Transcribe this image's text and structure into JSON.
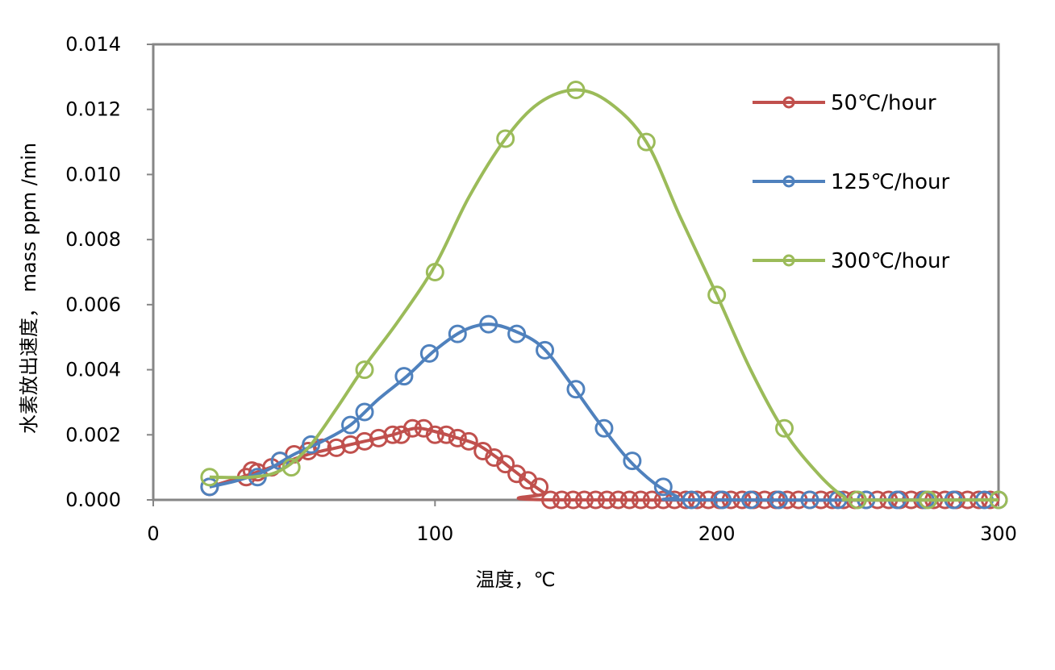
{
  "chart_data": {
    "type": "scatter",
    "xlabel": "温度，℃",
    "ylabel": "水素放出速度， mass ppm /min",
    "xlim": [
      0,
      300
    ],
    "ylim": [
      0,
      0.014
    ],
    "x_ticks": [
      0,
      100,
      200,
      300
    ],
    "x_tick_labels": [
      "0",
      "100",
      "200",
      "300"
    ],
    "y_ticks": [
      0,
      0.002,
      0.004,
      0.006,
      0.008,
      0.01,
      0.012,
      0.014
    ],
    "y_tick_labels": [
      "0.000",
      "0.002",
      "0.004",
      "0.006",
      "0.008",
      "0.010",
      "0.012",
      "0.014"
    ],
    "grid": false,
    "legend_position": "top-right",
    "series": [
      {
        "name": "50℃/hour",
        "color": "#c0504d",
        "marker": "open-circle",
        "points": [
          [
            20,
            0.0004
          ],
          [
            33,
            0.0007
          ],
          [
            35,
            0.0009
          ],
          [
            37,
            0.00085
          ],
          [
            42,
            0.001
          ],
          [
            45,
            0.0012
          ],
          [
            50,
            0.0014
          ],
          [
            55,
            0.0015
          ],
          [
            60,
            0.0016
          ],
          [
            65,
            0.0016
          ],
          [
            70,
            0.0017
          ],
          [
            75,
            0.0018
          ],
          [
            80,
            0.0019
          ],
          [
            85,
            0.002
          ],
          [
            88,
            0.002
          ],
          [
            92,
            0.0022
          ],
          [
            96,
            0.0022
          ],
          [
            100,
            0.002
          ],
          [
            104,
            0.002
          ],
          [
            108,
            0.0019
          ],
          [
            112,
            0.0018
          ],
          [
            117,
            0.0015
          ],
          [
            121,
            0.0013
          ],
          [
            125,
            0.0011
          ],
          [
            129,
            0.0008
          ],
          [
            133,
            0.0006
          ],
          [
            137,
            0.0004
          ],
          [
            141,
            0.0
          ],
          [
            145,
            0.0
          ],
          [
            149,
            0.0
          ],
          [
            153,
            0.0
          ],
          [
            157,
            0.0
          ],
          [
            161,
            0.0
          ],
          [
            165,
            0.0
          ],
          [
            169,
            0.0
          ],
          [
            173,
            0.0
          ],
          [
            177,
            0.0
          ],
          [
            181,
            0.0
          ],
          [
            185,
            0.0
          ],
          [
            189,
            0.0
          ],
          [
            193,
            0.0
          ],
          [
            197,
            0.0
          ],
          [
            201,
            0.0
          ],
          [
            205,
            0.0
          ],
          [
            209,
            0.0
          ],
          [
            213,
            0.0
          ],
          [
            217,
            0.0
          ],
          [
            221,
            0.0
          ],
          [
            225,
            0.0
          ],
          [
            229,
            0.0
          ],
          [
            233,
            0.0
          ],
          [
            237,
            0.0
          ],
          [
            241,
            0.0
          ],
          [
            245,
            0.0
          ],
          [
            249,
            0.0
          ],
          [
            253,
            0.0
          ],
          [
            257,
            0.0
          ],
          [
            261,
            0.0
          ],
          [
            265,
            0.0
          ],
          [
            269,
            0.0
          ],
          [
            273,
            0.0
          ],
          [
            277,
            0.0
          ],
          [
            281,
            0.0
          ],
          [
            285,
            0.0
          ],
          [
            289,
            0.0
          ],
          [
            293,
            0.0
          ],
          [
            297,
            0.0
          ]
        ],
        "curve": [
          [
            20,
            0.0004
          ],
          [
            35,
            0.0008
          ],
          [
            45,
            0.0011
          ],
          [
            55,
            0.0014
          ],
          [
            65,
            0.0016
          ],
          [
            75,
            0.0018
          ],
          [
            85,
            0.002
          ],
          [
            93,
            0.0022
          ],
          [
            100,
            0.0021
          ],
          [
            108,
            0.0019
          ],
          [
            115,
            0.0017
          ],
          [
            122,
            0.0013
          ],
          [
            128,
            0.0009
          ],
          [
            134,
            0.0005
          ],
          [
            139,
            0.0002
          ],
          [
            142,
            0.0
          ],
          [
            300,
            0.0
          ]
        ]
      },
      {
        "name": "125℃/hour",
        "color": "#4f81bd",
        "marker": "open-circle",
        "points": [
          [
            20,
            0.0004
          ],
          [
            37,
            0.0007
          ],
          [
            45,
            0.0012
          ],
          [
            56,
            0.0017
          ],
          [
            70,
            0.0023
          ],
          [
            75,
            0.0027
          ],
          [
            89,
            0.0038
          ],
          [
            98,
            0.0045
          ],
          [
            108,
            0.0051
          ],
          [
            119,
            0.0054
          ],
          [
            129,
            0.0051
          ],
          [
            139,
            0.0046
          ],
          [
            150,
            0.0034
          ],
          [
            160,
            0.0022
          ],
          [
            170,
            0.0012
          ],
          [
            181,
            0.0004
          ],
          [
            191,
            0.0
          ],
          [
            202,
            0.0
          ],
          [
            212,
            0.0
          ],
          [
            222,
            0.0
          ],
          [
            233,
            0.0
          ],
          [
            243,
            0.0
          ],
          [
            253,
            0.0
          ],
          [
            264,
            0.0
          ],
          [
            274,
            0.0
          ],
          [
            284,
            0.0
          ],
          [
            295,
            0.0
          ],
          [
            300,
            0.0
          ]
        ],
        "curve": [
          [
            20,
            0.0004
          ],
          [
            30,
            0.0006
          ],
          [
            40,
            0.0009
          ],
          [
            50,
            0.0014
          ],
          [
            60,
            0.0018
          ],
          [
            70,
            0.0023
          ],
          [
            80,
            0.0031
          ],
          [
            90,
            0.0038
          ],
          [
            100,
            0.0046
          ],
          [
            110,
            0.0052
          ],
          [
            119,
            0.0054
          ],
          [
            128,
            0.0052
          ],
          [
            138,
            0.0047
          ],
          [
            148,
            0.0036
          ],
          [
            158,
            0.0024
          ],
          [
            168,
            0.0013
          ],
          [
            178,
            0.0005
          ],
          [
            186,
            0.0001
          ],
          [
            190,
            0.0
          ],
          [
            300,
            0.0
          ]
        ]
      },
      {
        "name": "300℃/hour",
        "color": "#9bbb59",
        "marker": "open-circle",
        "points": [
          [
            20,
            0.0007
          ],
          [
            49,
            0.001
          ],
          [
            75,
            0.004
          ],
          [
            100,
            0.007
          ],
          [
            125,
            0.0111
          ],
          [
            150,
            0.0126
          ],
          [
            175,
            0.011
          ],
          [
            200,
            0.0063
          ],
          [
            224,
            0.0022
          ],
          [
            250,
            0.0
          ],
          [
            275,
            0.0
          ],
          [
            300,
            0.0
          ]
        ],
        "curve": [
          [
            20,
            0.0007
          ],
          [
            35,
            0.0007
          ],
          [
            45,
            0.0009
          ],
          [
            55,
            0.0016
          ],
          [
            65,
            0.0028
          ],
          [
            75,
            0.0041
          ],
          [
            87,
            0.0055
          ],
          [
            100,
            0.0072
          ],
          [
            112,
            0.0093
          ],
          [
            125,
            0.0111
          ],
          [
            137,
            0.0122
          ],
          [
            150,
            0.0126
          ],
          [
            162,
            0.0122
          ],
          [
            175,
            0.011
          ],
          [
            187,
            0.0087
          ],
          [
            200,
            0.0063
          ],
          [
            212,
            0.004
          ],
          [
            224,
            0.0021
          ],
          [
            236,
            0.0008
          ],
          [
            245,
            0.0001
          ],
          [
            250,
            0.0
          ],
          [
            300,
            0.0
          ]
        ]
      }
    ]
  }
}
